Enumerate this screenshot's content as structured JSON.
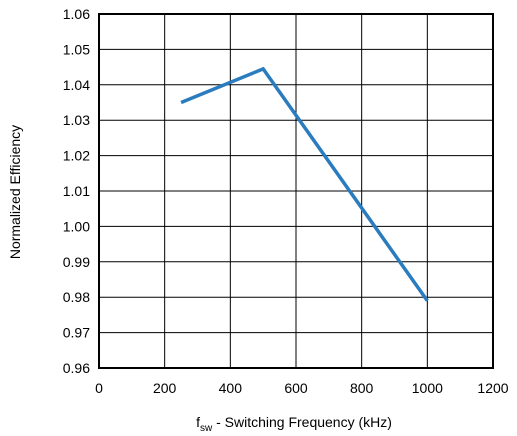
{
  "chart_data": {
    "type": "line",
    "title": "",
    "xlabel": "f",
    "xlabel_subscript": "sw",
    "xlabel_rest": " - Switching Frequency (kHz)",
    "ylabel": "Normalized Efficiency",
    "xlim": [
      0,
      1200
    ],
    "ylim": [
      0.96,
      1.06
    ],
    "x_ticks": [
      0,
      200,
      400,
      600,
      800,
      1000,
      1200
    ],
    "y_ticks": [
      0.96,
      0.97,
      0.98,
      0.99,
      1.0,
      1.01,
      1.02,
      1.03,
      1.04,
      1.05,
      1.06
    ],
    "x_tick_labels": [
      "0",
      "200",
      "400",
      "600",
      "800",
      "1000",
      "1200"
    ],
    "y_tick_labels": [
      "0.96",
      "0.97",
      "0.98",
      "0.99",
      "1.00",
      "1.01",
      "1.02",
      "1.03",
      "1.04",
      "1.05",
      "1.06"
    ],
    "grid": true,
    "series": [
      {
        "color": "#2b7cbf",
        "x": [
          250,
          500,
          1000
        ],
        "y": [
          1.035,
          1.0445,
          0.979
        ]
      }
    ]
  }
}
